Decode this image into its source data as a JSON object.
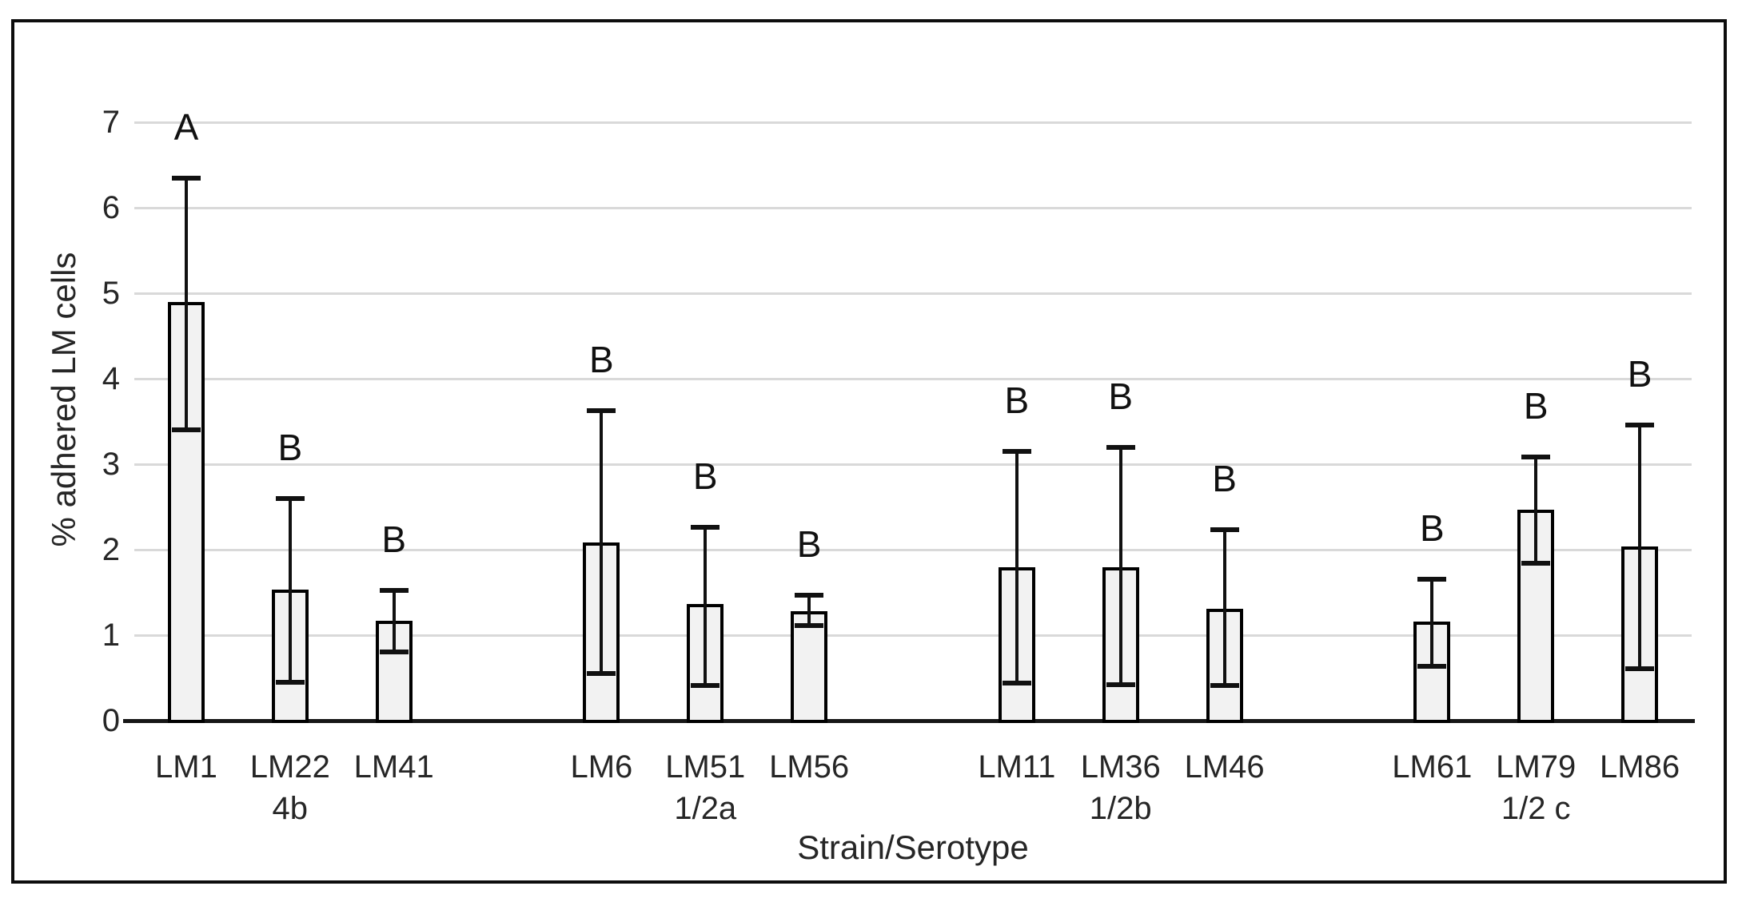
{
  "chart_data": {
    "type": "bar",
    "title": "",
    "xlabel": "Strain/Serotype",
    "ylabel": "% adhered LM cells",
    "ylim": [
      0,
      7
    ],
    "yticks": [
      0,
      1,
      2,
      3,
      4,
      5,
      6,
      7
    ],
    "grid": true,
    "legend_position": "none",
    "bar_fill": "#f2f2f2",
    "bar_border": "#000000",
    "grid_color": "#d9d9d9",
    "axis_color": "#161616",
    "error_bar_color": "#111111",
    "groups": [
      {
        "serotype": "4b",
        "bars": [
          {
            "strain": "LM1",
            "value": 4.9,
            "err_low": 3.4,
            "err_high": 6.35,
            "letter": "A"
          },
          {
            "strain": "LM22",
            "value": 1.53,
            "err_low": 0.45,
            "err_high": 2.6,
            "letter": "B"
          },
          {
            "strain": "LM41",
            "value": 1.17,
            "err_low": 0.8,
            "err_high": 1.52,
            "letter": "B"
          }
        ]
      },
      {
        "serotype": "1/2a",
        "bars": [
          {
            "strain": "LM6",
            "value": 2.08,
            "err_low": 0.55,
            "err_high": 3.63,
            "letter": "B"
          },
          {
            "strain": "LM51",
            "value": 1.36,
            "err_low": 0.41,
            "err_high": 2.26,
            "letter": "B"
          },
          {
            "strain": "LM56",
            "value": 1.28,
            "err_low": 1.11,
            "err_high": 1.47,
            "letter": "B"
          }
        ]
      },
      {
        "serotype": "1/2b",
        "bars": [
          {
            "strain": "LM11",
            "value": 1.79,
            "err_low": 0.44,
            "err_high": 3.15,
            "letter": "B"
          },
          {
            "strain": "LM36",
            "value": 1.79,
            "err_low": 0.42,
            "err_high": 3.2,
            "letter": "B"
          },
          {
            "strain": "LM46",
            "value": 1.31,
            "err_low": 0.41,
            "err_high": 2.23,
            "letter": "B"
          }
        ]
      },
      {
        "serotype": "1/2 c",
        "bars": [
          {
            "strain": "LM61",
            "value": 1.16,
            "err_low": 0.64,
            "err_high": 1.65,
            "letter": "B"
          },
          {
            "strain": "LM79",
            "value": 2.47,
            "err_low": 1.84,
            "err_high": 3.08,
            "letter": "B"
          },
          {
            "strain": "LM86",
            "value": 2.04,
            "err_low": 0.61,
            "err_high": 3.46,
            "letter": "B"
          }
        ]
      }
    ]
  }
}
